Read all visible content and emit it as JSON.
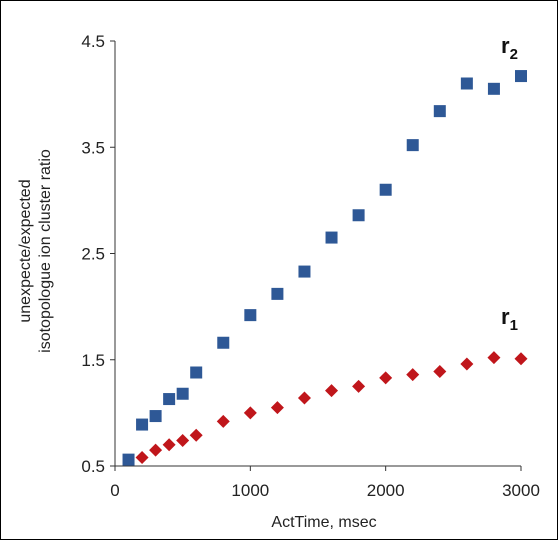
{
  "chart_data": {
    "type": "scatter",
    "xlabel": "ActTime, msec",
    "ylabel_lines": [
      "unexpecte/expected",
      "isotopologue ion cluster ratio"
    ],
    "xlim": [
      0,
      3000
    ],
    "ylim": [
      0.5,
      4.5
    ],
    "x_ticks": [
      0,
      1000,
      2000,
      3000
    ],
    "y_ticks": [
      0.5,
      1.5,
      2.5,
      3.5,
      4.5
    ],
    "x_tick_labels": [
      "0",
      "1000",
      "2000",
      "3000"
    ],
    "y_tick_labels": [
      "0.5",
      "1.5",
      "2.5",
      "3.5",
      "4.5"
    ],
    "grid": false,
    "series": [
      {
        "label": "r",
        "subscript": "2",
        "marker": "square",
        "color": "#2E5896",
        "x": [
          100,
          200,
          300,
          400,
          500,
          600,
          800,
          1000,
          1200,
          1400,
          1600,
          1800,
          2000,
          2200,
          2400,
          2600,
          2800,
          3000
        ],
        "y": [
          0.56,
          0.89,
          0.97,
          1.13,
          1.18,
          1.38,
          1.66,
          1.92,
          2.12,
          2.33,
          2.65,
          2.86,
          3.1,
          3.52,
          3.84,
          4.1,
          4.05,
          4.17
        ]
      },
      {
        "label": "r",
        "subscript": "1",
        "marker": "diamond",
        "color": "#C0161B",
        "x": [
          200,
          300,
          400,
          500,
          600,
          800,
          1000,
          1200,
          1400,
          1600,
          1800,
          2000,
          2200,
          2400,
          2600,
          2800,
          3000
        ],
        "y": [
          0.58,
          0.65,
          0.7,
          0.74,
          0.79,
          0.92,
          1.0,
          1.05,
          1.14,
          1.21,
          1.25,
          1.33,
          1.36,
          1.39,
          1.46,
          1.52,
          1.51
        ]
      }
    ]
  }
}
